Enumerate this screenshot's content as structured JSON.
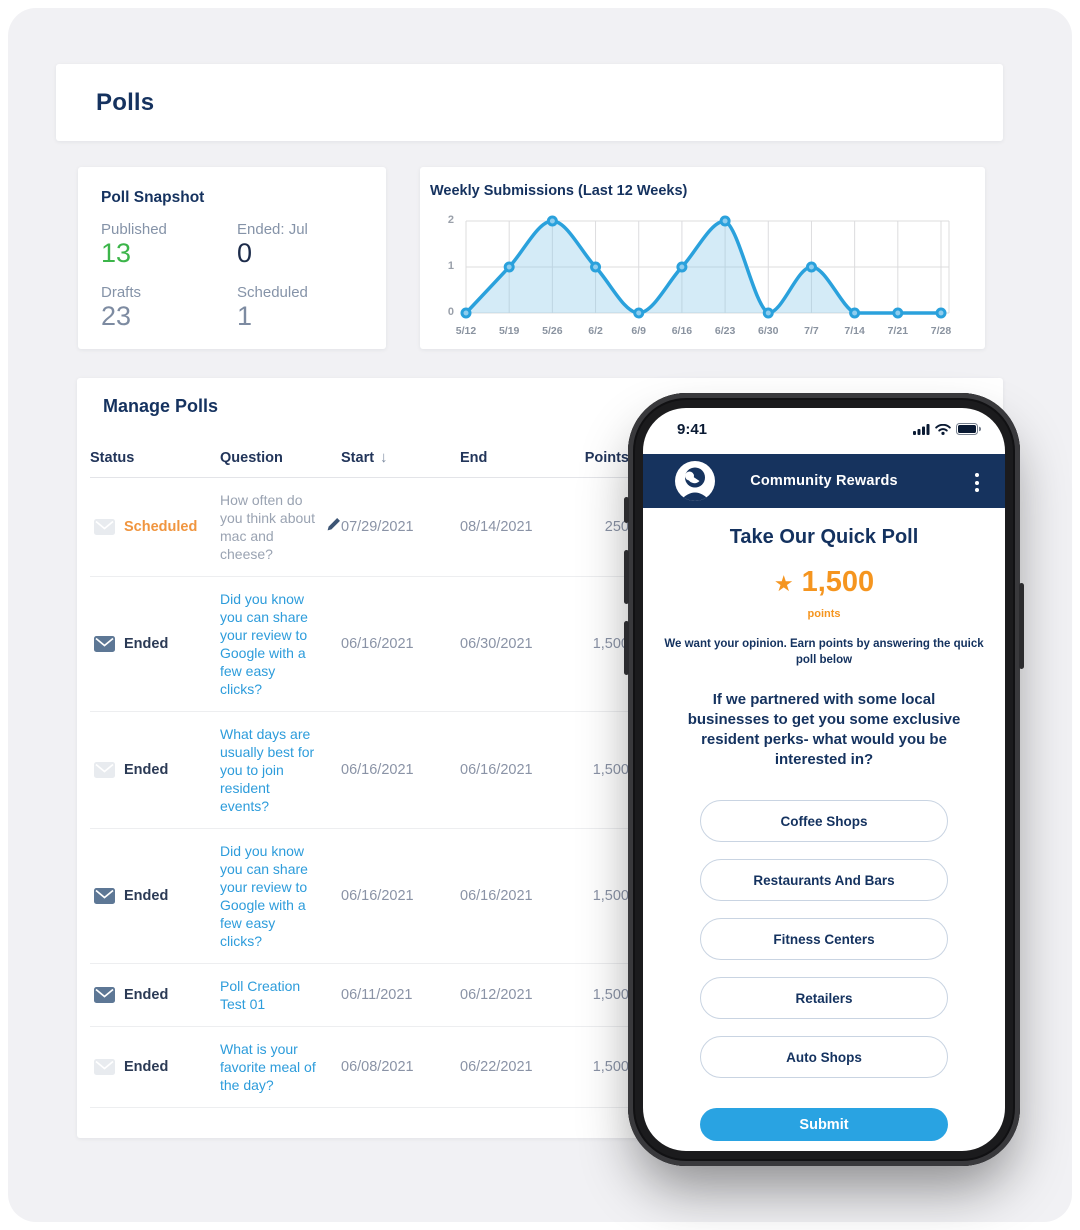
{
  "app": {
    "title": "Polls"
  },
  "snapshot": {
    "title": "Poll Snapshot",
    "stats": [
      {
        "label": "Published",
        "value": "13",
        "color": "#3cb54a"
      },
      {
        "label": "Ended: Jul",
        "value": "0",
        "color": "#1c2b4a"
      },
      {
        "label": "Drafts",
        "value": "23",
        "color": "#7d8ba1"
      },
      {
        "label": "Scheduled",
        "value": "1",
        "color": "#7d8ba1"
      }
    ]
  },
  "chart_data": {
    "type": "line",
    "title": "Weekly Submissions (Last 12 Weeks)",
    "x": [
      "5/12",
      "5/19",
      "5/26",
      "6/2",
      "6/9",
      "6/16",
      "6/23",
      "6/30",
      "7/7",
      "7/14",
      "7/21",
      "7/28"
    ],
    "values": [
      0,
      1,
      2,
      1,
      0,
      1,
      2,
      0,
      1,
      0,
      0,
      0
    ],
    "yticks": [
      0,
      1,
      2
    ],
    "ylim": [
      0,
      2
    ],
    "grid": true,
    "legend": "none",
    "line_color": "#2aa1dc",
    "fill_color": "rgba(141,203,234,0.38)",
    "marker_fill": "#8fcdee",
    "grid_color": "#dcdcde"
  },
  "manage": {
    "title": "Manage Polls",
    "columns": [
      "Status",
      "Question",
      "Start",
      "End",
      "Points"
    ],
    "sort_arrow": "↓",
    "rows": [
      {
        "status": "Scheduled",
        "status_color": "#f0953f",
        "envelope": "light",
        "question": "How often do you think about mac and cheese?",
        "question_color": "#9aa3b2",
        "editable": true,
        "start": "07/29/2021",
        "end": "08/14/2021",
        "points": "250"
      },
      {
        "status": "Ended",
        "status_color": "#2b3a55",
        "envelope": "dark",
        "question": "Did you know you can share your review to Google with a few easy clicks?",
        "question_color": "#2d9cdb",
        "editable": false,
        "start": "06/16/2021",
        "end": "06/30/2021",
        "points": "1,500"
      },
      {
        "status": "Ended",
        "status_color": "#2b3a55",
        "envelope": "light",
        "question": "What days are usually best for you to join resident events?",
        "question_color": "#2d9cdb",
        "editable": false,
        "start": "06/16/2021",
        "end": "06/16/2021",
        "points": "1,500"
      },
      {
        "status": "Ended",
        "status_color": "#2b3a55",
        "envelope": "dark",
        "question": "Did you know you can share your review to Google with a few easy clicks?",
        "question_color": "#2d9cdb",
        "editable": false,
        "start": "06/16/2021",
        "end": "06/16/2021",
        "points": "1,500"
      },
      {
        "status": "Ended",
        "status_color": "#2b3a55",
        "envelope": "dark",
        "question": "Poll Creation Test 01",
        "question_color": "#2d9cdb",
        "editable": false,
        "start": "06/11/2021",
        "end": "06/12/2021",
        "points": "1,500"
      },
      {
        "status": "Ended",
        "status_color": "#2b3a55",
        "envelope": "light",
        "question": "What is your favorite meal of the day?",
        "question_color": "#2d9cdb",
        "editable": false,
        "start": "06/08/2021",
        "end": "06/22/2021",
        "points": "1,500"
      }
    ]
  },
  "phone": {
    "status": {
      "time": "9:41"
    },
    "header": {
      "title": "Community Rewards",
      "bar_color": "#16335e"
    },
    "poll": {
      "title": "Take Our Quick Poll",
      "star": "★",
      "points_value": "1,500",
      "points_label": "points",
      "intro": "We want your opinion. Earn points by answering the quick poll below",
      "question": "If we partnered with some local businesses to get you some exclusive resident perks- what would you be interested in?",
      "options": [
        "Coffee Shops",
        "Restaurants And Bars",
        "Fitness Centers",
        "Retailers",
        "Auto Shops"
      ],
      "submit": "Submit",
      "submit_color": "#29a3e2",
      "accent_orange": "#f5951f"
    }
  }
}
